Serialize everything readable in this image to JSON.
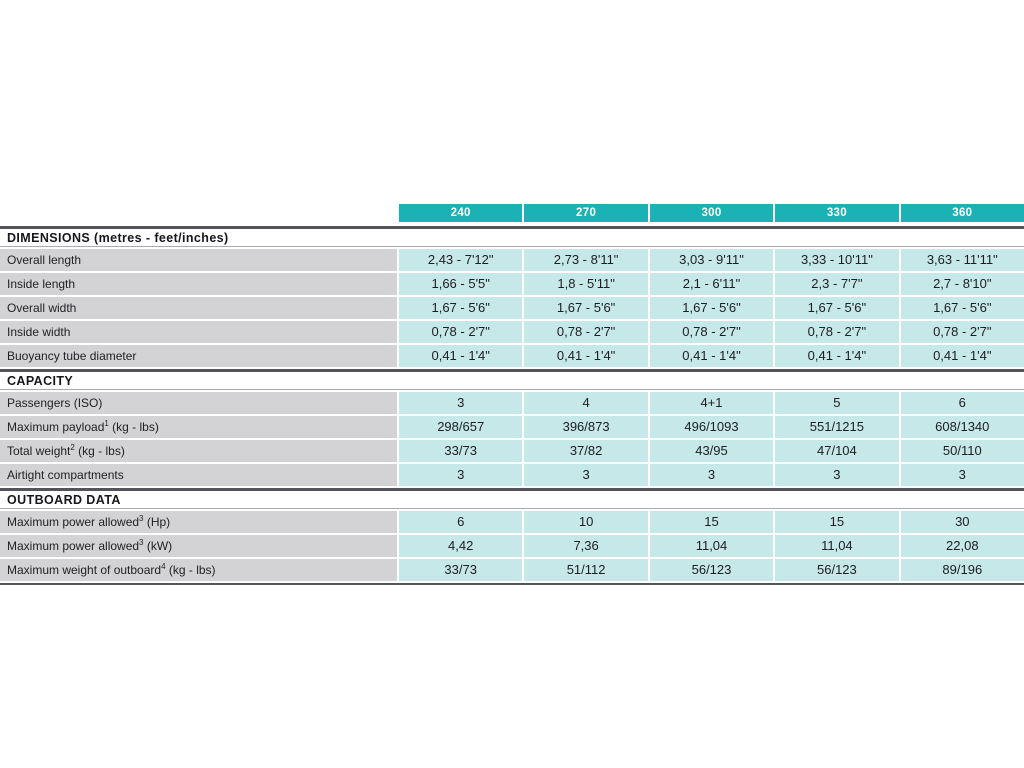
{
  "colors": {
    "header_teal": "#1ab2b5",
    "value_cell_teal": "#c6e8e9",
    "label_cell_gray": "#d3d3d5",
    "rule_dark": "#53535b",
    "rule_light": "#a9a9af",
    "header_text": "#ffffff",
    "body_text": "#1d1d22"
  },
  "table": {
    "columns": [
      "240",
      "270",
      "300",
      "330",
      "360"
    ],
    "sections": [
      {
        "title": "DIMENSIONS (metres - feet/inches)",
        "rows": [
          {
            "label": "Overall length",
            "sup": "",
            "unit": "",
            "values": [
              "2,43 - 7'12\"",
              "2,73 - 8'11\"",
              "3,03 - 9'11\"",
              "3,33 - 10'11\"",
              "3,63 - 11'11\""
            ]
          },
          {
            "label": "Inside length",
            "sup": "",
            "unit": "",
            "values": [
              "1,66 - 5'5\"",
              "1,8 - 5'11\"",
              "2,1 - 6'11\"",
              "2,3 - 7'7\"",
              "2,7 - 8'10\""
            ]
          },
          {
            "label": "Overall width",
            "sup": "",
            "unit": "",
            "values": [
              "1,67 - 5'6\"",
              "1,67 - 5'6\"",
              "1,67 - 5'6\"",
              "1,67 - 5'6\"",
              "1,67 - 5'6\""
            ]
          },
          {
            "label": "Inside width",
            "sup": "",
            "unit": "",
            "values": [
              "0,78 - 2'7\"",
              "0,78 - 2'7\"",
              "0,78 - 2'7\"",
              "0,78 - 2'7\"",
              "0,78 - 2'7\""
            ]
          },
          {
            "label": "Buoyancy tube diameter",
            "sup": "",
            "unit": "",
            "values": [
              "0,41 - 1'4\"",
              "0,41 - 1'4\"",
              "0,41 - 1'4\"",
              "0,41 - 1'4\"",
              "0,41 - 1'4\""
            ]
          }
        ]
      },
      {
        "title": "CAPACITY",
        "rows": [
          {
            "label": "Passengers (ISO)",
            "sup": "",
            "unit": "",
            "values": [
              "3",
              "4",
              "4+1",
              "5",
              "6"
            ]
          },
          {
            "label": "Maximum payload",
            "sup": "1",
            "unit": " (kg - lbs)",
            "values": [
              "298/657",
              "396/873",
              "496/1093",
              "551/1215",
              "608/1340"
            ]
          },
          {
            "label": "Total weight",
            "sup": "2",
            "unit": " (kg - lbs)",
            "values": [
              "33/73",
              "37/82",
              "43/95",
              "47/104",
              "50/110"
            ]
          },
          {
            "label": "Airtight compartments",
            "sup": "",
            "unit": "",
            "values": [
              "3",
              "3",
              "3",
              "3",
              "3"
            ]
          }
        ]
      },
      {
        "title": "OUTBOARD DATA",
        "rows": [
          {
            "label": "Maximum power allowed",
            "sup": "3",
            "unit": " (Hp)",
            "values": [
              "6",
              "10",
              "15",
              "15",
              "30"
            ]
          },
          {
            "label": "Maximum power allowed",
            "sup": "3",
            "unit": " (kW)",
            "values": [
              "4,42",
              "7,36",
              "11,04",
              "11,04",
              "22,08"
            ]
          },
          {
            "label": "Maximum weight of outboard",
            "sup": "4",
            "unit": " (kg - lbs)",
            "values": [
              "33/73",
              "51/112",
              "56/123",
              "56/123",
              "89/196"
            ]
          }
        ]
      }
    ]
  }
}
